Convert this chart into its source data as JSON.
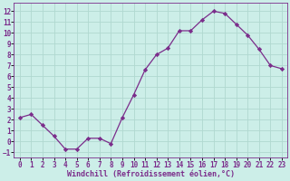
{
  "x": [
    0,
    1,
    2,
    3,
    4,
    5,
    6,
    7,
    8,
    9,
    10,
    11,
    12,
    13,
    14,
    15,
    16,
    17,
    18,
    19,
    20,
    21,
    22,
    23
  ],
  "y": [
    2.2,
    2.5,
    1.5,
    0.5,
    -0.7,
    -0.7,
    0.3,
    0.3,
    -0.2,
    2.2,
    4.3,
    6.6,
    8.0,
    8.6,
    10.2,
    10.2,
    11.2,
    12.0,
    11.8,
    10.8,
    9.8,
    8.5,
    7.0,
    6.7
  ],
  "line_color": "#7B2D8B",
  "marker": "D",
  "marker_size": 2.2,
  "bg_color": "#cceee8",
  "grid_color": "#b0d8d0",
  "xlabel": "Windchill (Refroidissement éolien,°C)",
  "ylim": [
    -1.5,
    12.8
  ],
  "xlim": [
    -0.5,
    23.5
  ],
  "yticks": [
    -1,
    0,
    1,
    2,
    3,
    4,
    5,
    6,
    7,
    8,
    9,
    10,
    11,
    12
  ],
  "xticks": [
    0,
    1,
    2,
    3,
    4,
    5,
    6,
    7,
    8,
    9,
    10,
    11,
    12,
    13,
    14,
    15,
    16,
    17,
    18,
    19,
    20,
    21,
    22,
    23
  ],
  "tick_color": "#7B2D8B",
  "label_color": "#7B2D8B",
  "tick_fontsize": 5.5,
  "xlabel_fontsize": 6.0
}
